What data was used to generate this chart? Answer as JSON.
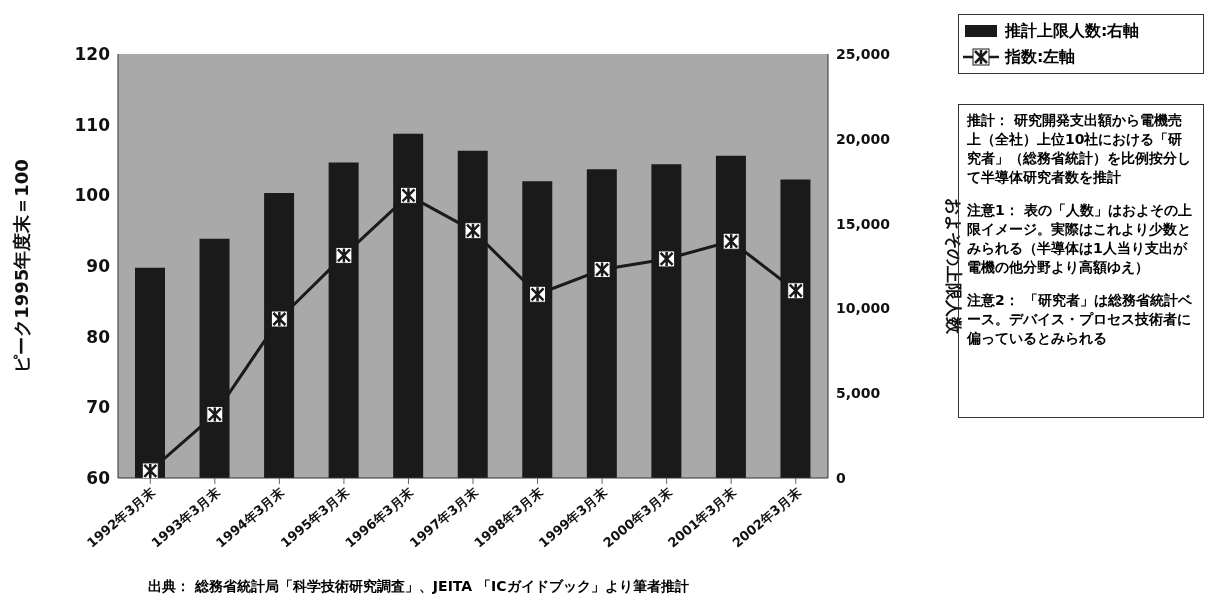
{
  "chart_data": {
    "type": "bar",
    "ylabel": "ピーク1995年度末＝100",
    "y2label": "およその上限人数",
    "categories": [
      "1992年3月末",
      "1993年3月末",
      "1994年3月末",
      "1995年3月末",
      "1996年3月末",
      "1997年3月末",
      "1998年3月末",
      "1999年3月末",
      "2000年3月末",
      "2001年3月末",
      "2002年3月末"
    ],
    "series": [
      {
        "name": "推計上限人数:右軸",
        "axis": "y2",
        "color": "#1a1a1a",
        "values": [
          12400,
          14100,
          16800,
          18600,
          20300,
          19300,
          17500,
          18200,
          18500,
          19000,
          17600
        ]
      },
      {
        "name": "指数:左軸",
        "type": "line",
        "color": "#1a1a1a",
        "values": [
          61,
          69,
          82.5,
          91.5,
          100,
          95,
          86,
          89.5,
          91,
          93.5,
          86.5
        ]
      }
    ],
    "ylim": [
      60,
      120
    ],
    "yticks": [
      60,
      70,
      80,
      90,
      100,
      110,
      120
    ],
    "y2lim": [
      0,
      25000
    ],
    "y2ticks": [
      0,
      {
        "value": 5000,
        "label": "5,000"
      },
      {
        "value": 10000,
        "label": "10,000"
      },
      {
        "value": 15000,
        "label": "15,000"
      },
      {
        "value": 20000,
        "label": "20,000"
      },
      {
        "value": 25000,
        "label": "25,000"
      }
    ],
    "legend": "top right",
    "marker": "square",
    "line_style": "solid",
    "annotations": [
      "推計： 研究開発支出額から電機売上（全社）上位10社における「研究者」（総務省統計）を比例按分して半導体研究者数を推計",
      "注意1： 表の「人数」はおよその上限イメージ。実際はこれより少数とみられる（半導体は1人当り支出が電機の他分野より高額ゆえ）",
      "注意2： 「研究者」は総務省統計ベース。デバイス・プロセス技術者に偏っているとみられる",
      "出典： 総務省統計局「科学技術研究調査」、JEITA 「ICガイドブック」より筆者推計"
    ]
  }
}
